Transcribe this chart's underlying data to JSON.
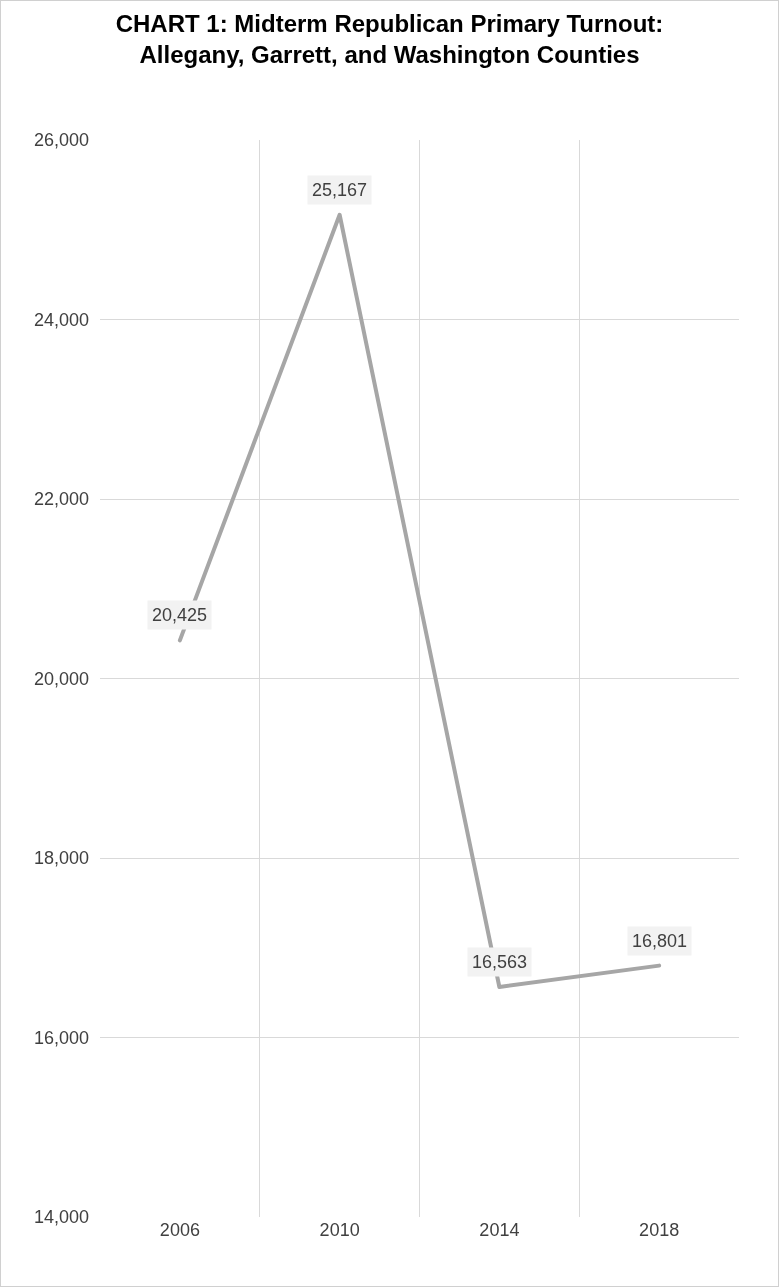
{
  "chart_data": {
    "type": "line",
    "title": "CHART 1: Midterm Republican Primary Turnout:\nAllegany, Garrett, and Washington Counties",
    "categories": [
      "2006",
      "2010",
      "2014",
      "2018"
    ],
    "series": [
      {
        "color": "#a6a6a6",
        "values": [
          20425,
          25167,
          16563,
          16801
        ]
      }
    ],
    "ylim": [
      14000,
      26000
    ],
    "yticks": [
      {
        "value": 14000,
        "label": "14,000"
      },
      {
        "value": 16000,
        "label": "16,000"
      },
      {
        "value": 18000,
        "label": "18,000"
      },
      {
        "value": 20000,
        "label": "20,000"
      },
      {
        "value": 22000,
        "label": "22,000"
      },
      {
        "value": 24000,
        "label": "24,000"
      },
      {
        "value": 26000,
        "label": "26,000"
      }
    ],
    "value_labels": [
      "20,425",
      "25,167",
      "16,563",
      "16,801"
    ],
    "grid": true,
    "line_style": "solid"
  }
}
